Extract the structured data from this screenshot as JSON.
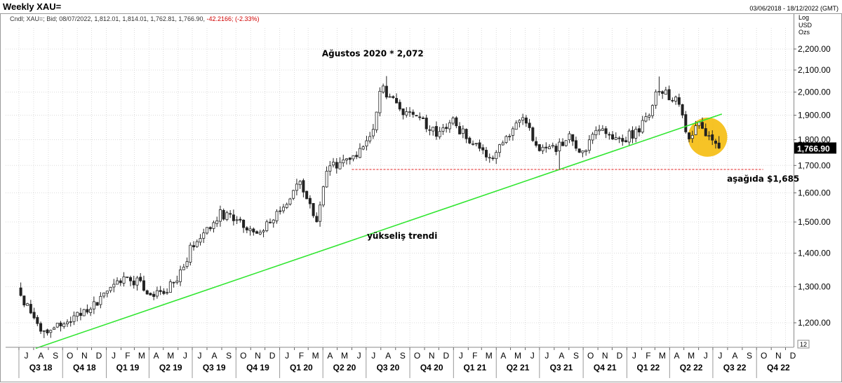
{
  "header": {
    "title": "Weekly XAU=",
    "date_range": "03/06/2018 - 18/12/2022 (GMT)",
    "ohlc_prefix": "Cndl; XAU=; Bid; 08/07/2022, 1,812.01, 1,814.01, 1,762.81, 1,766.90,",
    "ohlc_change": "-42.2166; (-2.33%)",
    "scale_type": "Log",
    "currency": "USD",
    "unit": "Ozs"
  },
  "chart_data": {
    "type": "candlestick",
    "title": "Weekly XAU=",
    "ylabel": "USD",
    "yscale": "log",
    "ylim": [
      1150,
      2250
    ],
    "y_ticks": [
      1200,
      1300,
      1400,
      1500,
      1600,
      1700,
      1800,
      1900,
      2000,
      2100,
      2200
    ],
    "y_tick_labels": [
      "1,200.00",
      "1,300.00",
      "1,400.00",
      "1,500.00",
      "1,600.00",
      "1,700.00",
      "1,800.00",
      "1,900.00",
      "2,000.00",
      "2,100.00",
      "2,200.00"
    ],
    "last_price_label": "1,766.90",
    "last_price": 1766.9,
    "corner_label": "12",
    "month_labels": [
      "J",
      "A",
      "S",
      "O",
      "N",
      "D",
      "J",
      "F",
      "M",
      "A",
      "M",
      "J",
      "J",
      "A",
      "S",
      "O",
      "N",
      "D",
      "J",
      "F",
      "M",
      "A",
      "M",
      "J",
      "J",
      "A",
      "S",
      "O",
      "N",
      "D",
      "J",
      "F",
      "M",
      "A",
      "M",
      "J",
      "J",
      "A",
      "S",
      "O",
      "N",
      "D",
      "J",
      "F",
      "M",
      "A",
      "M",
      "J",
      "J",
      "A",
      "S",
      "O",
      "N",
      "D"
    ],
    "quarter_labels": [
      "Q3 18",
      "Q4 18",
      "Q1 19",
      "Q2 19",
      "Q3 19",
      "Q4 19",
      "Q1 20",
      "Q2 20",
      "Q3 20",
      "Q4 20",
      "Q1 21",
      "Q2 21",
      "Q3 21",
      "Q4 21",
      "Q1 22",
      "Q2 22",
      "Q3 22",
      "Q4 22"
    ],
    "price_anchors": [
      [
        "2018-07-01",
        1300
      ],
      [
        "2018-08-15",
        1180
      ],
      [
        "2018-10-01",
        1195
      ],
      [
        "2018-12-01",
        1230
      ],
      [
        "2019-01-01",
        1290
      ],
      [
        "2019-02-20",
        1330
      ],
      [
        "2019-04-20",
        1275
      ],
      [
        "2019-06-01",
        1310
      ],
      [
        "2019-07-01",
        1410
      ],
      [
        "2019-09-01",
        1530
      ],
      [
        "2019-10-15",
        1495
      ],
      [
        "2019-11-20",
        1465
      ],
      [
        "2019-12-25",
        1520
      ],
      [
        "2020-01-15",
        1560
      ],
      [
        "2020-02-20",
        1640
      ],
      [
        "2020-03-20",
        1490
      ],
      [
        "2020-04-15",
        1700
      ],
      [
        "2020-06-01",
        1720
      ],
      [
        "2020-07-15",
        1800
      ],
      [
        "2020-08-07",
        2030
      ],
      [
        "2020-09-15",
        1910
      ],
      [
        "2020-11-01",
        1880
      ],
      [
        "2020-12-01",
        1820
      ],
      [
        "2021-01-01",
        1880
      ],
      [
        "2021-02-15",
        1780
      ],
      [
        "2021-03-20",
        1720
      ],
      [
        "2021-05-01",
        1810
      ],
      [
        "2021-06-01",
        1900
      ],
      [
        "2021-06-25",
        1770
      ],
      [
        "2021-08-10",
        1760
      ],
      [
        "2021-09-01",
        1815
      ],
      [
        "2021-10-01",
        1750
      ],
      [
        "2021-11-15",
        1860
      ],
      [
        "2021-12-15",
        1790
      ],
      [
        "2022-01-15",
        1820
      ],
      [
        "2022-02-25",
        1900
      ],
      [
        "2022-03-08",
        2000
      ],
      [
        "2022-04-15",
        1980
      ],
      [
        "2022-05-15",
        1820
      ],
      [
        "2022-06-10",
        1860
      ],
      [
        "2022-07-08",
        1766.9
      ]
    ],
    "major_anchor_points": [
      {
        "date": "2018-08-17",
        "price": 1160,
        "type": "low"
      },
      {
        "date": "2020-08-07",
        "price": 2072,
        "type": "high"
      },
      {
        "date": "2022-03-08",
        "price": 2070,
        "type": "high"
      },
      {
        "date": "2021-08-09",
        "price": 1685,
        "type": "low"
      }
    ],
    "uptrend_line": {
      "start": [
        "2018-07-01",
        1150
      ],
      "end": [
        "2022-07-20",
        1905
      ],
      "color": "#33e633"
    },
    "support_line": {
      "start": [
        "2020-06-01",
        1685
      ],
      "end": [
        "2022-10-15",
        1685
      ],
      "value": 1685,
      "color": "#e02020"
    },
    "highlight_circle": {
      "date": "2022-06-20",
      "price": 1810,
      "color": "#f5b800"
    },
    "annotations": [
      {
        "text": "Ağustos 2020 * 2,072",
        "date": "2020-07-15",
        "price": 2165
      },
      {
        "text": "aşağıda $1,685",
        "date": "2022-10-15",
        "price": 1640
      },
      {
        "text": "yükseliş trendi",
        "date": "2020-09-15",
        "price": 1445
      }
    ]
  }
}
